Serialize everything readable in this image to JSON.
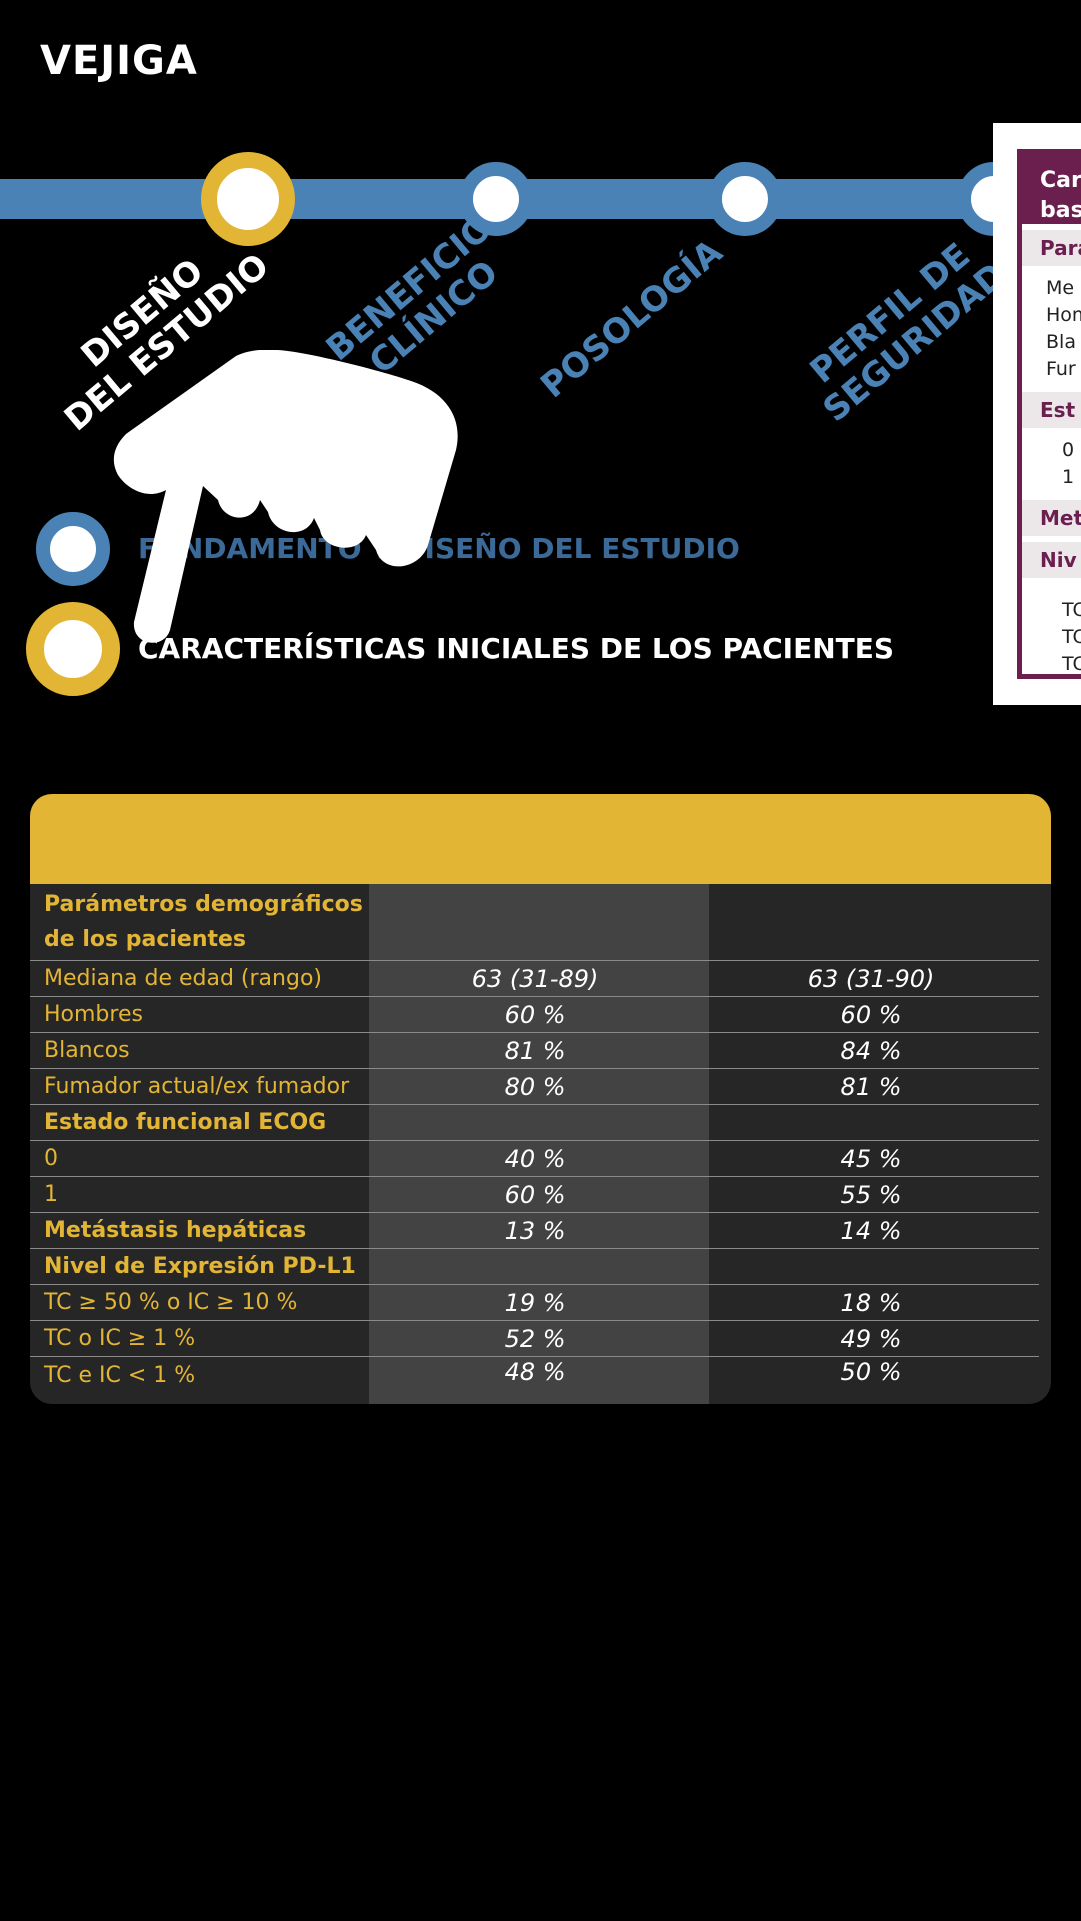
{
  "header": {
    "title": "VEJIGA"
  },
  "timeline": {
    "steps": [
      {
        "label_line1": "DISEÑO",
        "label_line2": "DEL ESTUDIO",
        "active": true
      },
      {
        "label_line1": "BENEFICIO",
        "label_line2": "CLÍNICO",
        "active": false
      },
      {
        "label_line1": "POSOLOGÍA",
        "label_line2": "",
        "active": false
      },
      {
        "label_line1": "PERFIL DE",
        "label_line2": "SEGURIDAD",
        "active": false
      }
    ]
  },
  "legend": {
    "item1": "FUNDAMENTO Y DISEÑO DEL ESTUDIO",
    "item2": "CARACTERÍSTICAS INICIALES DE LOS PACIENTES"
  },
  "side_card": {
    "title_line1": "Cara",
    "title_line2": "bas",
    "section1": "Para",
    "rows1": [
      "Me",
      "Hom",
      "Bla",
      "Fur"
    ],
    "section2": "Est",
    "rows2": [
      "0",
      "1"
    ],
    "section3": "Met",
    "section4": "Niv",
    "rows4": [
      "TC",
      "TC",
      "TC"
    ]
  },
  "table": {
    "rows": [
      {
        "label": "Parámetros demográficos de los pacientes",
        "bold": true,
        "a": "",
        "b": ""
      },
      {
        "label": "Mediana de edad (rango)",
        "bold": false,
        "a": "63 (31-89)",
        "b": "63 (31-90)"
      },
      {
        "label": "Hombres",
        "bold": false,
        "a": "60 %",
        "b": "60 %"
      },
      {
        "label": "Blancos",
        "bold": false,
        "a": "81 %",
        "b": "84 %"
      },
      {
        "label": "Fumador actual/ex fumador",
        "bold": false,
        "a": "80 %",
        "b": "81 %"
      },
      {
        "label": "Estado funcional ECOG",
        "bold": true,
        "a": "",
        "b": ""
      },
      {
        "label": "0",
        "bold": false,
        "a": "40 %",
        "b": "45 %"
      },
      {
        "label": "1",
        "bold": false,
        "a": "60 %",
        "b": "55 %"
      },
      {
        "label": "Metástasis hepáticas",
        "bold": true,
        "a": "13 %",
        "b": "14 %"
      },
      {
        "label": "Nivel de Expresión PD-L1",
        "bold": true,
        "a": "",
        "b": ""
      },
      {
        "label": "TC ≥ 50 % o IC ≥ 10 %",
        "bold": false,
        "a": "19 %",
        "b": "18 %"
      },
      {
        "label": "TC o IC ≥ 1 %",
        "bold": false,
        "a": "52 %",
        "b": "49 %"
      },
      {
        "label": "TC e IC < 1 %",
        "bold": false,
        "a": "48 %",
        "b": "50 %"
      }
    ]
  },
  "colors": {
    "gold": "#e3b535",
    "blue": "#4a82b5",
    "plum": "#6a1f4e",
    "background": "#000000"
  },
  "icons": {
    "pointer": "pointing-hand-icon"
  }
}
